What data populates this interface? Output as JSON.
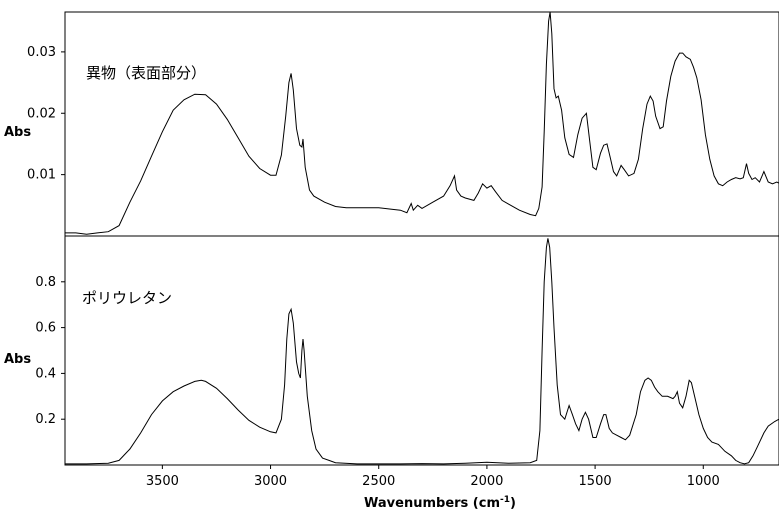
{
  "chart_data": [
    {
      "type": "line",
      "panel": "top",
      "annotation": "異物（表面部分）",
      "ylabel": "Abs",
      "xlim": [
        3950,
        650
      ],
      "ylim": [
        0.0,
        0.0365
      ],
      "x_reversed": true,
      "yticks": [
        {
          "value": 0.01,
          "label": "0.01"
        },
        {
          "value": 0.02,
          "label": "0.02"
        },
        {
          "value": 0.03,
          "label": "0.03"
        }
      ],
      "series": [
        {
          "points": [
            [
              3950,
              0.0005
            ],
            [
              3900,
              0.0005
            ],
            [
              3850,
              0.0003
            ],
            [
              3800,
              0.0005
            ],
            [
              3750,
              0.0007
            ],
            [
              3700,
              0.0017
            ],
            [
              3650,
              0.0055
            ],
            [
              3600,
              0.009
            ],
            [
              3550,
              0.013
            ],
            [
              3500,
              0.017
            ],
            [
              3450,
              0.0205
            ],
            [
              3400,
              0.0222
            ],
            [
              3350,
              0.0231
            ],
            [
              3300,
              0.023
            ],
            [
              3250,
              0.0215
            ],
            [
              3200,
              0.019
            ],
            [
              3150,
              0.016
            ],
            [
              3100,
              0.013
            ],
            [
              3050,
              0.011
            ],
            [
              3000,
              0.0099
            ],
            [
              2975,
              0.0099
            ],
            [
              2950,
              0.0132
            ],
            [
              2930,
              0.0195
            ],
            [
              2915,
              0.025
            ],
            [
              2905,
              0.0265
            ],
            [
              2895,
              0.0238
            ],
            [
              2880,
              0.0175
            ],
            [
              2865,
              0.0148
            ],
            [
              2855,
              0.0145
            ],
            [
              2850,
              0.0158
            ],
            [
              2840,
              0.0112
            ],
            [
              2820,
              0.0075
            ],
            [
              2800,
              0.0065
            ],
            [
              2750,
              0.0055
            ],
            [
              2700,
              0.0048
            ],
            [
              2650,
              0.0046
            ],
            [
              2600,
              0.0046
            ],
            [
              2550,
              0.0046
            ],
            [
              2500,
              0.0046
            ],
            [
              2450,
              0.0044
            ],
            [
              2400,
              0.0042
            ],
            [
              2370,
              0.0038
            ],
            [
              2350,
              0.0053
            ],
            [
              2340,
              0.0042
            ],
            [
              2320,
              0.005
            ],
            [
              2300,
              0.0045
            ],
            [
              2250,
              0.0055
            ],
            [
              2200,
              0.0065
            ],
            [
              2170,
              0.0082
            ],
            [
              2150,
              0.0098
            ],
            [
              2140,
              0.0075
            ],
            [
              2120,
              0.0065
            ],
            [
              2100,
              0.0062
            ],
            [
              2060,
              0.0058
            ],
            [
              2040,
              0.007
            ],
            [
              2020,
              0.0085
            ],
            [
              2000,
              0.0078
            ],
            [
              1980,
              0.0082
            ],
            [
              1960,
              0.0072
            ],
            [
              1930,
              0.0058
            ],
            [
              1900,
              0.0052
            ],
            [
              1850,
              0.0042
            ],
            [
              1800,
              0.0035
            ],
            [
              1775,
              0.0033
            ],
            [
              1760,
              0.0045
            ],
            [
              1745,
              0.008
            ],
            [
              1735,
              0.017
            ],
            [
              1725,
              0.028
            ],
            [
              1715,
              0.035
            ],
            [
              1708,
              0.0365
            ],
            [
              1700,
              0.033
            ],
            [
              1690,
              0.024
            ],
            [
              1680,
              0.0225
            ],
            [
              1670,
              0.0228
            ],
            [
              1655,
              0.0205
            ],
            [
              1640,
              0.016
            ],
            [
              1620,
              0.0133
            ],
            [
              1600,
              0.0128
            ],
            [
              1580,
              0.0165
            ],
            [
              1560,
              0.0192
            ],
            [
              1540,
              0.02
            ],
            [
              1525,
              0.0155
            ],
            [
              1510,
              0.0112
            ],
            [
              1495,
              0.0108
            ],
            [
              1475,
              0.0135
            ],
            [
              1460,
              0.0148
            ],
            [
              1445,
              0.015
            ],
            [
              1430,
              0.0128
            ],
            [
              1415,
              0.0105
            ],
            [
              1400,
              0.0098
            ],
            [
              1380,
              0.0115
            ],
            [
              1365,
              0.0108
            ],
            [
              1345,
              0.0098
            ],
            [
              1320,
              0.0102
            ],
            [
              1300,
              0.0125
            ],
            [
              1280,
              0.0175
            ],
            [
              1260,
              0.0215
            ],
            [
              1245,
              0.0228
            ],
            [
              1232,
              0.022
            ],
            [
              1220,
              0.0195
            ],
            [
              1200,
              0.0175
            ],
            [
              1185,
              0.0178
            ],
            [
              1170,
              0.022
            ],
            [
              1150,
              0.026
            ],
            [
              1130,
              0.0285
            ],
            [
              1110,
              0.0298
            ],
            [
              1095,
              0.0298
            ],
            [
              1080,
              0.0292
            ],
            [
              1060,
              0.0288
            ],
            [
              1045,
              0.0275
            ],
            [
              1030,
              0.0258
            ],
            [
              1010,
              0.0222
            ],
            [
              990,
              0.0165
            ],
            [
              970,
              0.0125
            ],
            [
              950,
              0.0098
            ],
            [
              930,
              0.0085
            ],
            [
              910,
              0.0082
            ],
            [
              890,
              0.0088
            ],
            [
              870,
              0.0092
            ],
            [
              850,
              0.0095
            ],
            [
              830,
              0.0093
            ],
            [
              815,
              0.0095
            ],
            [
              800,
              0.0118
            ],
            [
              790,
              0.0102
            ],
            [
              775,
              0.0092
            ],
            [
              760,
              0.0095
            ],
            [
              740,
              0.0088
            ],
            [
              720,
              0.0105
            ],
            [
              700,
              0.0088
            ],
            [
              680,
              0.0085
            ],
            [
              660,
              0.0088
            ],
            [
              650,
              0.0086
            ]
          ]
        }
      ]
    },
    {
      "type": "line",
      "panel": "bottom",
      "annotation": "ポリウレタン",
      "ylabel": "Abs",
      "xlabel": "Wavenumbers (cm-1)",
      "xlim": [
        3950,
        650
      ],
      "ylim": [
        0.0,
        1.0
      ],
      "x_reversed": true,
      "xticks": [
        {
          "value": 3500,
          "label": "3500"
        },
        {
          "value": 3000,
          "label": "3000"
        },
        {
          "value": 2500,
          "label": "2500"
        },
        {
          "value": 2000,
          "label": "2000"
        },
        {
          "value": 1500,
          "label": "1500"
        },
        {
          "value": 1000,
          "label": "1000"
        }
      ],
      "yticks": [
        {
          "value": 0.2,
          "label": "0.2"
        },
        {
          "value": 0.4,
          "label": "0.4"
        },
        {
          "value": 0.6,
          "label": "0.6"
        },
        {
          "value": 0.8,
          "label": "0.8"
        }
      ],
      "series": [
        {
          "points": [
            [
              3950,
              0.005
            ],
            [
              3850,
              0.005
            ],
            [
              3750,
              0.008
            ],
            [
              3700,
              0.02
            ],
            [
              3650,
              0.07
            ],
            [
              3600,
              0.14
            ],
            [
              3550,
              0.22
            ],
            [
              3500,
              0.28
            ],
            [
              3450,
              0.32
            ],
            [
              3400,
              0.345
            ],
            [
              3350,
              0.365
            ],
            [
              3320,
              0.37
            ],
            [
              3300,
              0.365
            ],
            [
              3250,
              0.335
            ],
            [
              3200,
              0.29
            ],
            [
              3150,
              0.24
            ],
            [
              3100,
              0.195
            ],
            [
              3050,
              0.165
            ],
            [
              3000,
              0.145
            ],
            [
              2975,
              0.14
            ],
            [
              2950,
              0.2
            ],
            [
              2935,
              0.35
            ],
            [
              2925,
              0.55
            ],
            [
              2915,
              0.66
            ],
            [
              2905,
              0.68
            ],
            [
              2895,
              0.62
            ],
            [
              2880,
              0.45
            ],
            [
              2870,
              0.4
            ],
            [
              2862,
              0.38
            ],
            [
              2855,
              0.5
            ],
            [
              2850,
              0.55
            ],
            [
              2845,
              0.5
            ],
            [
              2830,
              0.3
            ],
            [
              2810,
              0.15
            ],
            [
              2790,
              0.07
            ],
            [
              2760,
              0.03
            ],
            [
              2730,
              0.02
            ],
            [
              2700,
              0.01
            ],
            [
              2600,
              0.005
            ],
            [
              2500,
              0.005
            ],
            [
              2400,
              0.005
            ],
            [
              2300,
              0.006
            ],
            [
              2200,
              0.005
            ],
            [
              2100,
              0.008
            ],
            [
              2000,
              0.012
            ],
            [
              1900,
              0.008
            ],
            [
              1800,
              0.01
            ],
            [
              1770,
              0.02
            ],
            [
              1755,
              0.15
            ],
            [
              1745,
              0.5
            ],
            [
              1735,
              0.8
            ],
            [
              1725,
              0.95
            ],
            [
              1718,
              0.99
            ],
            [
              1710,
              0.95
            ],
            [
              1700,
              0.8
            ],
            [
              1690,
              0.6
            ],
            [
              1675,
              0.35
            ],
            [
              1660,
              0.22
            ],
            [
              1640,
              0.2
            ],
            [
              1620,
              0.26
            ],
            [
              1605,
              0.22
            ],
            [
              1590,
              0.18
            ],
            [
              1575,
              0.15
            ],
            [
              1560,
              0.2
            ],
            [
              1545,
              0.23
            ],
            [
              1530,
              0.2
            ],
            [
              1510,
              0.12
            ],
            [
              1495,
              0.12
            ],
            [
              1475,
              0.18
            ],
            [
              1460,
              0.22
            ],
            [
              1450,
              0.22
            ],
            [
              1435,
              0.16
            ],
            [
              1420,
              0.14
            ],
            [
              1400,
              0.13
            ],
            [
              1380,
              0.12
            ],
            [
              1360,
              0.11
            ],
            [
              1340,
              0.13
            ],
            [
              1310,
              0.22
            ],
            [
              1290,
              0.32
            ],
            [
              1270,
              0.37
            ],
            [
              1255,
              0.38
            ],
            [
              1240,
              0.37
            ],
            [
              1225,
              0.34
            ],
            [
              1210,
              0.32
            ],
            [
              1190,
              0.3
            ],
            [
              1165,
              0.3
            ],
            [
              1140,
              0.29
            ],
            [
              1130,
              0.3
            ],
            [
              1120,
              0.32
            ],
            [
              1110,
              0.27
            ],
            [
              1095,
              0.25
            ],
            [
              1080,
              0.3
            ],
            [
              1065,
              0.37
            ],
            [
              1055,
              0.36
            ],
            [
              1040,
              0.3
            ],
            [
              1020,
              0.22
            ],
            [
              1000,
              0.16
            ],
            [
              980,
              0.12
            ],
            [
              960,
              0.1
            ],
            [
              930,
              0.09
            ],
            [
              900,
              0.06
            ],
            [
              870,
              0.04
            ],
            [
              850,
              0.02
            ],
            [
              830,
              0.01
            ],
            [
              810,
              0.005
            ],
            [
              790,
              0.01
            ],
            [
              770,
              0.04
            ],
            [
              750,
              0.08
            ],
            [
              720,
              0.14
            ],
            [
              700,
              0.17
            ],
            [
              670,
              0.19
            ],
            [
              650,
              0.2
            ]
          ]
        }
      ]
    }
  ]
}
